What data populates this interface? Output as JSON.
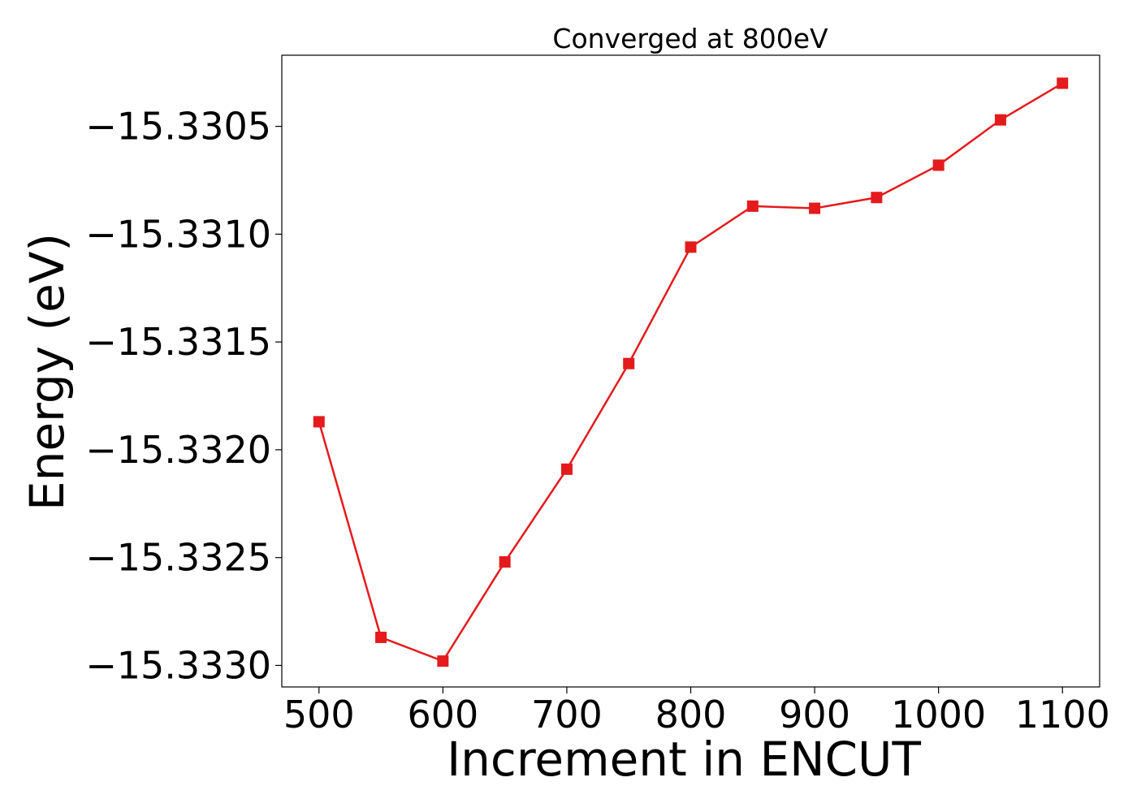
{
  "chart_data": {
    "type": "line",
    "title": "Converged at 800eV",
    "xlabel": "Increment in ENCUT",
    "ylabel": "Energy (eV)",
    "x": [
      500,
      550,
      600,
      650,
      700,
      750,
      800,
      850,
      900,
      950,
      1000,
      1050,
      1100
    ],
    "series": [
      {
        "values": [
          -15.33187,
          -15.33287,
          -15.33298,
          -15.33252,
          -15.33209,
          -15.3316,
          -15.33106,
          -15.33087,
          -15.33088,
          -15.33083,
          -15.33068,
          -15.33047,
          -15.3303
        ],
        "color": "#e41a1c",
        "marker": "square"
      }
    ],
    "xlim": [
      470,
      1130
    ],
    "ylim": [
      -15.3331,
      -15.33017
    ],
    "xticks": [
      500,
      600,
      700,
      800,
      900,
      1000,
      1100
    ],
    "xtick_labels": [
      "500",
      "600",
      "700",
      "800",
      "900",
      "1000",
      "1100"
    ],
    "yticks": [
      -15.333,
      -15.3325,
      -15.332,
      -15.3315,
      -15.331,
      -15.3305
    ],
    "ytick_labels": [
      "−15.3330",
      "−15.3325",
      "−15.3320",
      "−15.3315",
      "−15.3310",
      "−15.3305"
    ],
    "grid": false,
    "legend": false
  }
}
